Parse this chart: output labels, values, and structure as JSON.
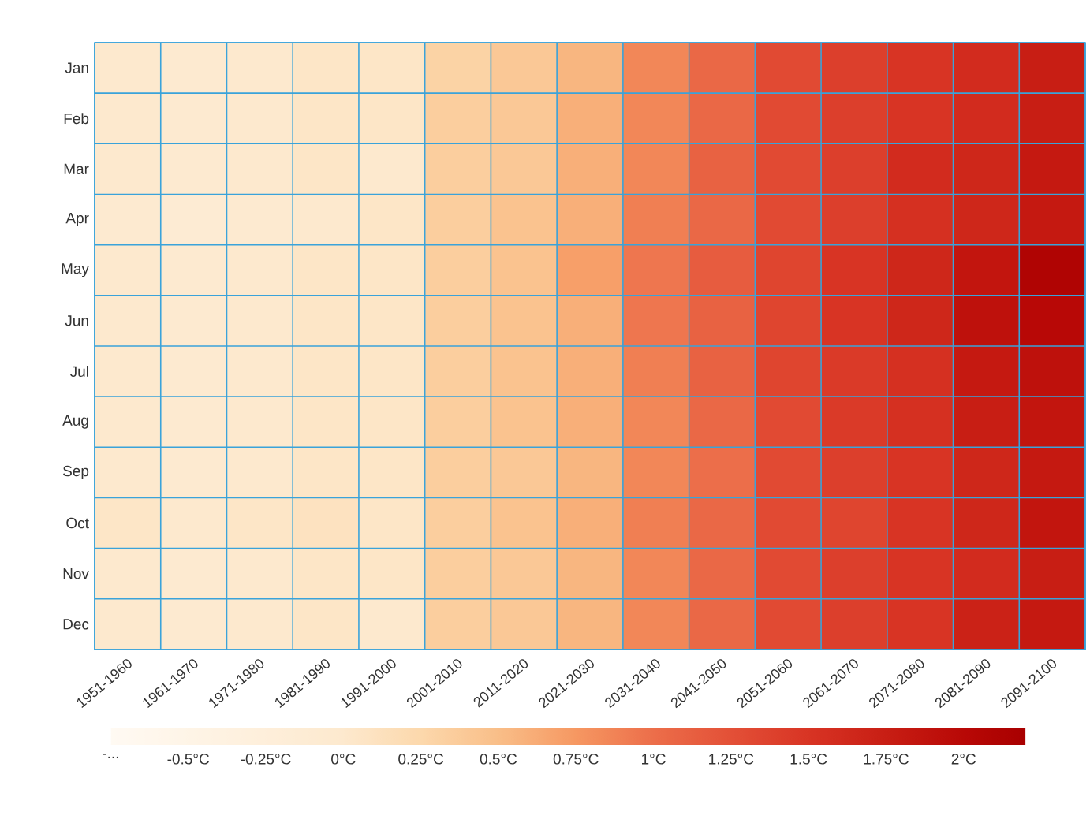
{
  "chart_data": {
    "type": "heatmap",
    "categories": [
      "1951-1960",
      "1961-1970",
      "1971-1980",
      "1981-1990",
      "1991-2000",
      "2001-2010",
      "2011-2020",
      "2021-2030",
      "2031-2040",
      "2041-2050",
      "2051-2060",
      "2061-2070",
      "2071-2080",
      "2081-2090",
      "2091-2100"
    ],
    "y_categories": [
      "Jan",
      "Feb",
      "Mar",
      "Apr",
      "May",
      "Jun",
      "Jul",
      "Aug",
      "Sep",
      "Oct",
      "Nov",
      "Dec"
    ],
    "cells": [
      [
        0.0,
        -0.05,
        0.0,
        0.05,
        0.05,
        0.3,
        0.4,
        0.55,
        0.85,
        1.05,
        1.3,
        1.4,
        1.5,
        1.6,
        1.75
      ],
      [
        0.0,
        -0.05,
        0.0,
        0.05,
        0.05,
        0.35,
        0.4,
        0.6,
        0.85,
        1.05,
        1.3,
        1.4,
        1.5,
        1.6,
        1.75
      ],
      [
        0.0,
        -0.05,
        0.0,
        0.05,
        0.0,
        0.35,
        0.4,
        0.6,
        0.85,
        1.1,
        1.3,
        1.4,
        1.6,
        1.65,
        1.8
      ],
      [
        -0.05,
        -0.1,
        -0.05,
        0.0,
        0.05,
        0.35,
        0.45,
        0.6,
        0.9,
        1.05,
        1.3,
        1.4,
        1.55,
        1.65,
        1.8
      ],
      [
        0.0,
        -0.05,
        0.0,
        0.05,
        0.05,
        0.35,
        0.45,
        0.7,
        0.95,
        1.15,
        1.35,
        1.5,
        1.65,
        1.85,
        2.1
      ],
      [
        0.0,
        -0.05,
        0.0,
        0.05,
        0.05,
        0.35,
        0.45,
        0.6,
        0.95,
        1.1,
        1.35,
        1.5,
        1.65,
        1.9,
        2.0
      ],
      [
        0.0,
        -0.05,
        0.0,
        0.05,
        0.05,
        0.35,
        0.45,
        0.6,
        0.9,
        1.1,
        1.35,
        1.45,
        1.55,
        1.8,
        1.9
      ],
      [
        0.0,
        -0.05,
        0.0,
        0.05,
        0.05,
        0.35,
        0.45,
        0.6,
        0.85,
        1.05,
        1.3,
        1.45,
        1.55,
        1.75,
        1.85
      ],
      [
        0.0,
        -0.05,
        0.0,
        0.05,
        0.05,
        0.35,
        0.4,
        0.55,
        0.85,
        1.0,
        1.3,
        1.4,
        1.5,
        1.65,
        1.8
      ],
      [
        0.05,
        0.0,
        0.05,
        0.1,
        0.05,
        0.35,
        0.45,
        0.6,
        0.9,
        1.05,
        1.3,
        1.35,
        1.5,
        1.65,
        1.85
      ],
      [
        0.0,
        -0.05,
        0.0,
        0.05,
        0.05,
        0.35,
        0.4,
        0.55,
        0.85,
        1.05,
        1.3,
        1.4,
        1.5,
        1.6,
        1.75
      ],
      [
        0.0,
        -0.05,
        0.0,
        0.05,
        0.0,
        0.35,
        0.4,
        0.55,
        0.85,
        1.05,
        1.3,
        1.4,
        1.5,
        1.7,
        1.8
      ]
    ],
    "clim": [
      -0.75,
      2.2
    ],
    "cticks": [
      {
        "value": -0.75,
        "label": "-..."
      },
      {
        "value": -0.5,
        "label": "-0.5°C"
      },
      {
        "value": -0.25,
        "label": "-0.25°C"
      },
      {
        "value": 0,
        "label": "0°C"
      },
      {
        "value": 0.25,
        "label": "0.25°C"
      },
      {
        "value": 0.5,
        "label": "0.5°C"
      },
      {
        "value": 0.75,
        "label": "0.75°C"
      },
      {
        "value": 1,
        "label": "1°C"
      },
      {
        "value": 1.25,
        "label": "1.25°C"
      },
      {
        "value": 1.5,
        "label": "1.5°C"
      },
      {
        "value": 1.75,
        "label": "1.75°C"
      },
      {
        "value": 2,
        "label": "2°C"
      }
    ]
  }
}
